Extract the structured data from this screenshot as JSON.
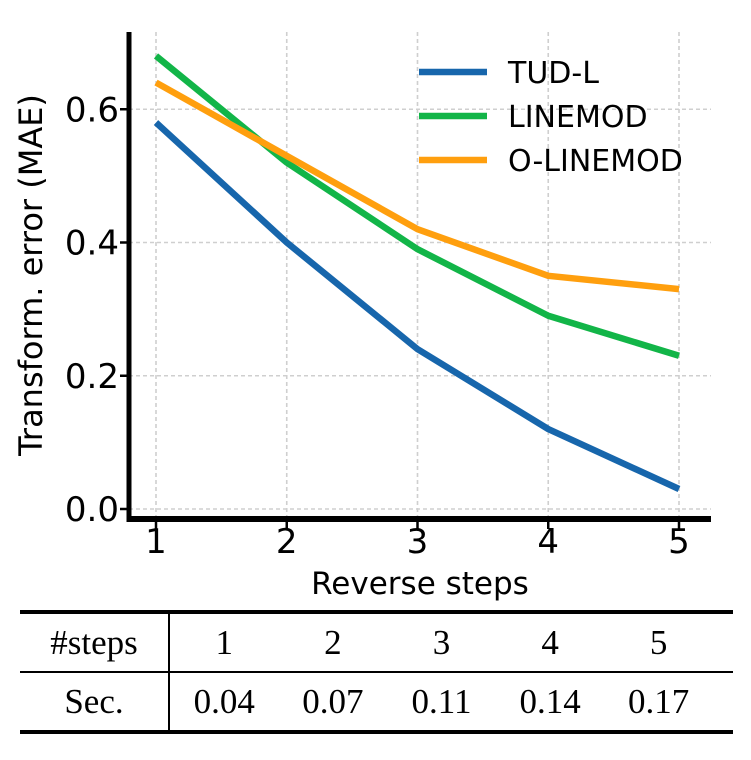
{
  "figure": {
    "background": "#ffffff"
  },
  "chart_data": {
    "type": "line",
    "x": [
      1,
      2,
      3,
      4,
      5
    ],
    "xlabel": "Reverse steps",
    "ylabel": "Transform. error (MAE)",
    "x_tick_labels": [
      "1",
      "2",
      "3",
      "4",
      "5"
    ],
    "y_ticks": [
      0.0,
      0.2,
      0.4,
      0.6
    ],
    "y_tick_labels": [
      "0.0",
      "0.2",
      "0.4",
      "0.6"
    ],
    "xlim": [
      0.8,
      5.24
    ],
    "ylim": [
      -0.015,
      0.715
    ],
    "grid": true,
    "grid_style": "dashed",
    "legend_position": "upper right",
    "series": [
      {
        "name": "TUD-L",
        "color": "#1766ac",
        "values": [
          0.58,
          0.4,
          0.24,
          0.12,
          0.03
        ]
      },
      {
        "name": "LINEMOD",
        "color": "#12b548",
        "values": [
          0.68,
          0.52,
          0.39,
          0.29,
          0.23
        ]
      },
      {
        "name": "O-LINEMOD",
        "color": "#ff9f0e",
        "values": [
          0.64,
          0.53,
          0.42,
          0.35,
          0.33
        ]
      }
    ]
  },
  "table": {
    "header_label": "#steps",
    "row_label": "Sec.",
    "steps": [
      "1",
      "2",
      "3",
      "4",
      "5"
    ],
    "seconds": [
      "0.04",
      "0.07",
      "0.11",
      "0.14",
      "0.17"
    ]
  },
  "colors": {
    "grid": "#cfcfcf",
    "axis": "#000000",
    "text": "#000000",
    "background": "#ffffff"
  }
}
